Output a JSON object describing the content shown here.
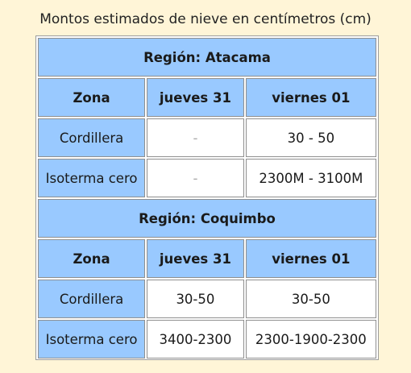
{
  "caption": "Montos estimados de nieve en centímetros (cm)",
  "headers": {
    "zone": "Zona",
    "day1": "jueves 31",
    "day2": "viernes 01"
  },
  "regions": [
    {
      "title": "Región: Atacama",
      "rows": [
        {
          "zone": "Cordillera",
          "day1": "-",
          "day2": "30 - 50"
        },
        {
          "zone": "Isoterma cero",
          "day1": "-",
          "day2": "2300M - 3100M"
        }
      ]
    },
    {
      "title": "Región: Coquimbo",
      "rows": [
        {
          "zone": "Cordillera",
          "day1": "30-50",
          "day2": "30-50"
        },
        {
          "zone": "Isoterma cero",
          "day1": "3400-2300",
          "day2": "2300-1900-2300"
        }
      ]
    }
  ]
}
